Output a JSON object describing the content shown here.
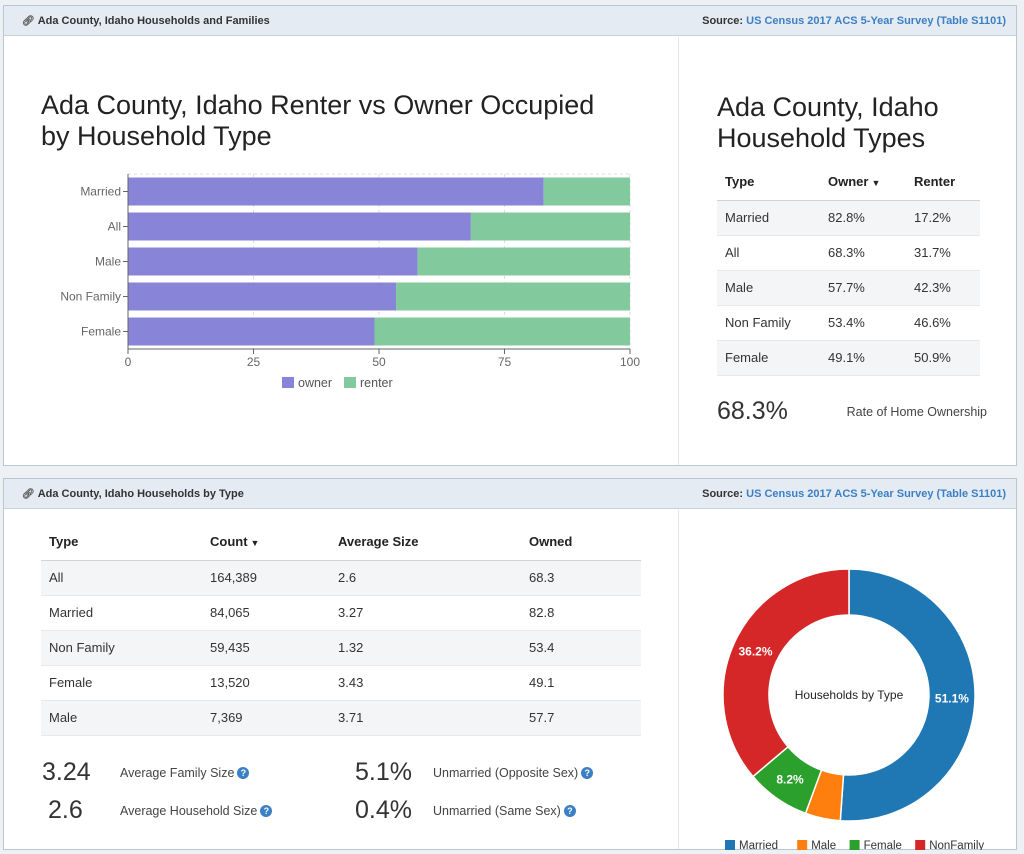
{
  "panel1": {
    "title": "Ada County, Idaho Households and Families",
    "source_label": "Source:",
    "source_link": "US Census 2017 ACS 5-Year Survey (Table S1101)"
  },
  "bar_chart_title_line1": "Ada County, Idaho Renter vs Owner Occupied",
  "bar_chart_title_line2": "by Household Type",
  "chart_data": [
    {
      "type": "bar",
      "orientation": "horizontal",
      "stacked": true,
      "title": "Ada County, Idaho Renter vs Owner Occupied by Household Type",
      "categories": [
        "Married",
        "All",
        "Male",
        "Non Family",
        "Female"
      ],
      "series": [
        {
          "name": "owner",
          "values": [
            82.8,
            68.3,
            57.7,
            53.4,
            49.1
          ],
          "color": "#8884d8"
        },
        {
          "name": "renter",
          "values": [
            17.2,
            31.7,
            42.3,
            46.6,
            50.9
          ],
          "color": "#82ca9d"
        }
      ],
      "xlim": [
        0,
        100
      ],
      "xticks": [
        0,
        25,
        50,
        75,
        100
      ],
      "legend": "bottom"
    },
    {
      "type": "pie",
      "donut": true,
      "center_label": "Households by Type",
      "slices": [
        {
          "name": "Married",
          "value": 51.1,
          "color": "#1f77b4",
          "label": "51.1%"
        },
        {
          "name": "Male",
          "value": 4.5,
          "color": "#ff7f0e",
          "label": ""
        },
        {
          "name": "Female",
          "value": 8.2,
          "color": "#2ca02c",
          "label": "8.2%"
        },
        {
          "name": "NonFamily",
          "value": 36.2,
          "color": "#d62728",
          "label": "36.2%"
        }
      ],
      "legend": "bottom"
    }
  ],
  "types_title_line1": "Ada County, Idaho",
  "types_title_line2": "Household Types",
  "types_table": {
    "headers": [
      "Type",
      "Owner",
      "Renter"
    ],
    "sort_caret": "▼",
    "rows": [
      [
        "Married",
        "82.8%",
        "17.2%"
      ],
      [
        "All",
        "68.3%",
        "31.7%"
      ],
      [
        "Male",
        "57.7%",
        "42.3%"
      ],
      [
        "Non Family",
        "53.4%",
        "46.6%"
      ],
      [
        "Female",
        "49.1%",
        "50.9%"
      ]
    ]
  },
  "ownership": {
    "value": "68.3%",
    "label": "Rate of Home Ownership"
  },
  "panel2": {
    "title": "Ada County, Idaho Households by Type",
    "source_label": "Source:",
    "source_link": "US Census 2017 ACS 5-Year Survey (Table S1101)"
  },
  "hh_table": {
    "headers": [
      "Type",
      "Count",
      "Average Size",
      "Owned"
    ],
    "sort_caret": "▼",
    "rows": [
      [
        "All",
        "164,389",
        "2.6",
        "68.3"
      ],
      [
        "Married",
        "84,065",
        "3.27",
        "82.8"
      ],
      [
        "Non Family",
        "59,435",
        "1.32",
        "53.4"
      ],
      [
        "Female",
        "13,520",
        "3.43",
        "49.1"
      ],
      [
        "Male",
        "7,369",
        "3.71",
        "57.7"
      ]
    ]
  },
  "stats": {
    "avg_family_size": {
      "value": "3.24",
      "label": "Average Family Size"
    },
    "avg_household_size": {
      "value": "2.6",
      "label": "Average Household Size"
    },
    "unmarried_opposite": {
      "value": "5.1%",
      "label": "Unmarried (Opposite Sex)"
    },
    "unmarried_same": {
      "value": "0.4%",
      "label": "Unmarried (Same Sex)"
    }
  },
  "icons": {
    "link": "link-icon",
    "help": "question-circle-icon"
  },
  "help_glyph": "?",
  "link_glyph": "🔗"
}
